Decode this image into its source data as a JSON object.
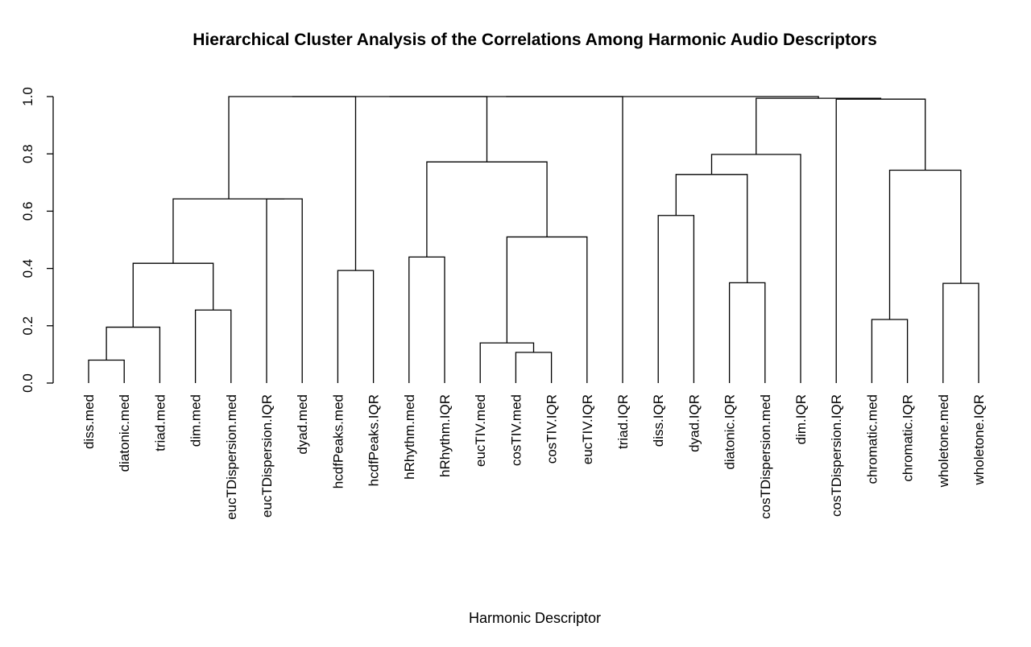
{
  "chart_data": {
    "type": "dendrogram",
    "title": "Hierarchical Cluster Analysis of the Correlations Among Harmonic Audio Descriptors",
    "xlabel": "Harmonic Descriptor",
    "ylabel": "",
    "ylim": [
      0,
      1
    ],
    "yticks": [
      "0.0",
      "0.2",
      "0.4",
      "0.6",
      "0.8",
      "1.0"
    ],
    "grid": false,
    "leaves": [
      "diss.med",
      "diatonic.med",
      "triad.med",
      "dim.med",
      "eucTDispersion.med",
      "eucTDispersion.IQR",
      "dyad.med",
      "hcdfPeaks.med",
      "hcdfPeaks.IQR",
      "hRhythm.med",
      "hRhythm.IQR",
      "eucTIV.med",
      "cosTIV.med",
      "cosTIV.IQR",
      "eucTIV.IQR",
      "triad.IQR",
      "diss.IQR",
      "dyad.IQR",
      "diatonic.IQR",
      "cosTDispersion.med",
      "dim.IQR",
      "cosTDispersion.IQR",
      "chromatic.med",
      "chromatic.IQR",
      "wholetone.med",
      "wholetone.IQR"
    ],
    "merges": [
      {
        "a": 0,
        "b": 1,
        "height": 0.08
      },
      {
        "a": "m0",
        "b": 2,
        "height": 0.195
      },
      {
        "a": 3,
        "b": 4,
        "height": 0.255
      },
      {
        "a": "m1",
        "b": "m2",
        "height": 0.418
      },
      {
        "a": 5,
        "b": 6,
        "height": 0.643
      },
      {
        "a": "m3",
        "b": "m4",
        "height": 0.643
      },
      {
        "a": 7,
        "b": 8,
        "height": 0.393
      },
      {
        "a": 9,
        "b": 10,
        "height": 0.44
      },
      {
        "a": 12,
        "b": 13,
        "height": 0.107
      },
      {
        "a": 11,
        "b": "m8",
        "height": 0.14
      },
      {
        "a": "m9",
        "b": 14,
        "height": 0.51
      },
      {
        "a": "m7",
        "b": "m10",
        "height": 0.772
      },
      {
        "a": 16,
        "b": 17,
        "height": 0.585
      },
      {
        "a": 18,
        "b": 19,
        "height": 0.35
      },
      {
        "a": "m12",
        "b": "m13",
        "height": 0.728
      },
      {
        "a": "m14",
        "b": 20,
        "height": 0.798
      },
      {
        "a": 22,
        "b": 23,
        "height": 0.222
      },
      {
        "a": 24,
        "b": 25,
        "height": 0.348
      },
      {
        "a": "m16",
        "b": "m17",
        "height": 0.743
      },
      {
        "a": 21,
        "b": "m18",
        "height": 0.991
      },
      {
        "a": "m15",
        "b": "m19",
        "height": 0.994
      },
      {
        "a": "m5",
        "b": "m6",
        "height": 1.0
      },
      {
        "a": "m21",
        "b": "m11",
        "height": 1.0
      },
      {
        "a": "m22",
        "b": 15,
        "height": 1.0
      },
      {
        "a": "m23",
        "b": "m20",
        "height": 1.0
      }
    ]
  }
}
